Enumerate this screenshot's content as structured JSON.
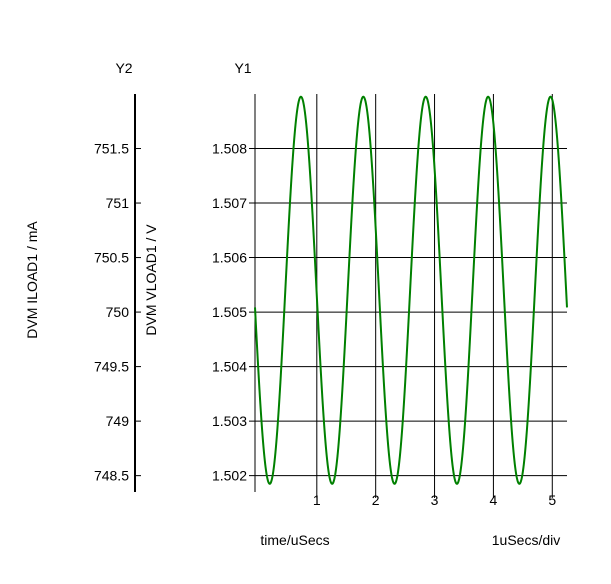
{
  "chart_data": {
    "type": "line",
    "x_axis": {
      "label": "time/uSecs",
      "scale_label": "1uSecs/div",
      "range": [
        -0.05,
        5.25
      ],
      "ticks": [
        1,
        2,
        3,
        4,
        5
      ],
      "tick_labels": [
        "1",
        "2",
        "3",
        "4",
        "5"
      ]
    },
    "y1_axis": {
      "header": "Y1",
      "label": "DVM VLOAD1 / V",
      "range": [
        1.5017,
        1.509
      ],
      "ticks": [
        1.502,
        1.503,
        1.504,
        1.505,
        1.506,
        1.507,
        1.508
      ],
      "tick_labels": [
        "1.502",
        "1.503",
        "1.504",
        "1.505",
        "1.506",
        "1.507",
        "1.508"
      ]
    },
    "y2_axis": {
      "header": "Y2",
      "label": "DVM ILOAD1 / mA",
      "ticks": [
        748.5,
        749,
        749.5,
        750,
        750.5,
        751,
        751.5
      ],
      "tick_labels": [
        "748.5",
        "749",
        "749.5",
        "750",
        "750.5",
        "751",
        "751.5"
      ]
    },
    "grid": true,
    "series": [
      {
        "color": "#008000",
        "waveform": {
          "kind": "sine",
          "offset": 1.5054,
          "amplitude": 0.00355,
          "period": 1.06,
          "peak_at": 0.73,
          "x_start": -0.05,
          "x_end": 5.25
        }
      }
    ]
  }
}
